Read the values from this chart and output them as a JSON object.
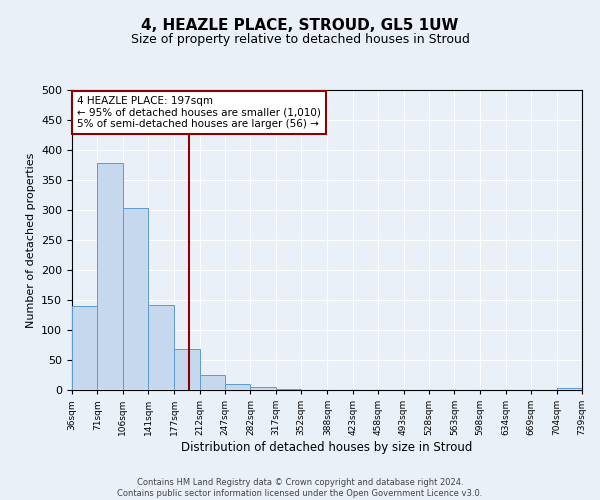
{
  "title": "4, HEAZLE PLACE, STROUD, GL5 1UW",
  "subtitle": "Size of property relative to detached houses in Stroud",
  "xlabel": "Distribution of detached houses by size in Stroud",
  "ylabel": "Number of detached properties",
  "bar_edges": [
    36,
    71,
    106,
    141,
    177,
    212,
    247,
    282,
    317,
    352,
    388,
    423,
    458,
    493,
    528,
    563,
    598,
    634,
    669,
    704,
    739
  ],
  "bar_heights": [
    140,
    378,
    304,
    142,
    69,
    25,
    10,
    5,
    1,
    0,
    0,
    0,
    0,
    0,
    0,
    0,
    0,
    0,
    0,
    3
  ],
  "bar_color": "#c5d8ed",
  "bar_edge_color": "#5b9bd5",
  "vline_x": 197,
  "vline_color": "#8b0000",
  "ylim": [
    0,
    500
  ],
  "annotation_line1": "4 HEAZLE PLACE: 197sqm",
  "annotation_line2": "← 95% of detached houses are smaller (1,010)",
  "annotation_line3": "5% of semi-detached houses are larger (56) →",
  "annotation_box_color": "#ffffff",
  "annotation_box_edge": "#8b0000",
  "footer_text": "Contains HM Land Registry data © Crown copyright and database right 2024.\nContains public sector information licensed under the Open Government Licence v3.0.",
  "tick_labels": [
    "36sqm",
    "71sqm",
    "106sqm",
    "141sqm",
    "177sqm",
    "212sqm",
    "247sqm",
    "282sqm",
    "317sqm",
    "352sqm",
    "388sqm",
    "423sqm",
    "458sqm",
    "493sqm",
    "528sqm",
    "563sqm",
    "598sqm",
    "634sqm",
    "669sqm",
    "704sqm",
    "739sqm"
  ],
  "bg_color": "#eaf0f8",
  "plot_bg_color": "#eaf0f8",
  "grid_color": "#ffffff",
  "yticks": [
    0,
    50,
    100,
    150,
    200,
    250,
    300,
    350,
    400,
    450,
    500
  ]
}
